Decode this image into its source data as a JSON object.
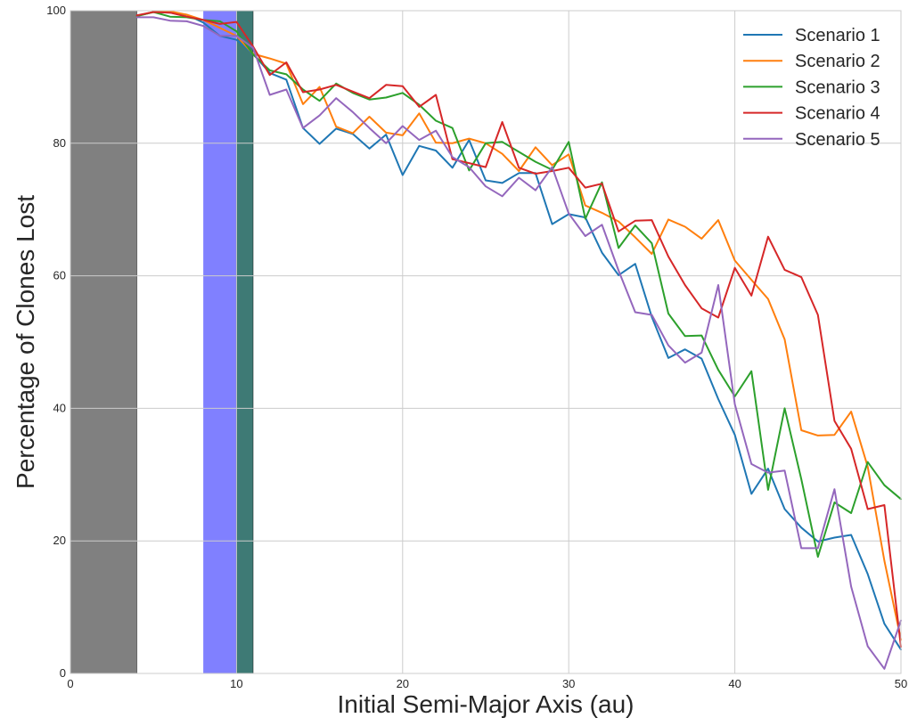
{
  "chart_data": {
    "type": "line",
    "title": "",
    "xlabel": "Initial Semi-Major Axis (au)",
    "ylabel": "Percentage of Clones Lost",
    "xlim": [
      0,
      50
    ],
    "ylim": [
      0,
      100
    ],
    "xticks": [
      0,
      10,
      20,
      30,
      40,
      50
    ],
    "yticks": [
      0,
      20,
      40,
      60,
      80,
      100
    ],
    "grid": true,
    "legend_position": "top-right",
    "bands": [
      {
        "x0": 0,
        "x1": 4,
        "color": "#808080"
      },
      {
        "x0": 8,
        "x1": 10,
        "color": "#8080ff"
      },
      {
        "x0": 10,
        "x1": 11,
        "color": "#3e7a75"
      }
    ],
    "x": [
      4,
      5,
      6,
      7,
      8,
      9,
      10,
      11,
      12,
      13,
      14,
      15,
      16,
      17,
      18,
      19,
      20,
      21,
      22,
      23,
      24,
      25,
      26,
      27,
      28,
      29,
      30,
      31,
      32,
      33,
      34,
      35,
      36,
      37,
      38,
      39,
      40,
      41,
      42,
      43,
      44,
      45,
      46,
      47,
      48,
      49,
      50
    ],
    "series": [
      {
        "name": "Scenario 1",
        "color": "#1f77b4",
        "values": [
          99.2,
          99.8,
          99.7,
          99.4,
          98.2,
          96.2,
          95.6,
          93.5,
          90.6,
          89.6,
          82.3,
          79.9,
          82.2,
          81.4,
          79.2,
          81.3,
          75.2,
          79.6,
          78.9,
          76.3,
          80.5,
          74.4,
          74.0,
          75.5,
          75.5,
          67.8,
          69.3,
          68.8,
          63.5,
          60.1,
          61.8,
          53.8,
          47.6,
          48.9,
          47.5,
          41.4,
          36.0,
          27.1,
          30.9,
          24.8,
          22.0,
          19.9,
          20.5,
          20.9,
          15.0,
          7.5,
          3.6
        ]
      },
      {
        "name": "Scenario 2",
        "color": "#ff7f0e",
        "values": [
          99.2,
          99.8,
          99.9,
          99.4,
          98.6,
          97.4,
          96.2,
          93.5,
          92.8,
          92.0,
          85.9,
          88.5,
          82.5,
          81.5,
          84.0,
          81.6,
          81.2,
          84.5,
          80.1,
          80.0,
          80.7,
          80.0,
          78.4,
          75.8,
          79.4,
          76.7,
          78.3,
          70.6,
          69.5,
          68.2,
          65.8,
          63.3,
          68.5,
          67.4,
          65.6,
          68.4,
          62.3,
          59.4,
          56.5,
          50.4,
          36.7,
          35.9,
          36.0,
          39.5,
          31.2,
          17.0,
          5.1
        ]
      },
      {
        "name": "Scenario 3",
        "color": "#2ca02c",
        "values": [
          99.2,
          99.8,
          99.1,
          99.0,
          98.6,
          98.4,
          96.9,
          93.4,
          91.0,
          90.4,
          88.1,
          86.4,
          89.0,
          87.6,
          86.6,
          86.9,
          87.6,
          85.8,
          83.4,
          82.3,
          75.9,
          80.0,
          80.2,
          78.7,
          77.2,
          76.0,
          80.2,
          68.6,
          74.1,
          64.2,
          67.6,
          64.9,
          54.3,
          50.9,
          51.0,
          45.8,
          41.8,
          45.6,
          27.7,
          40.0,
          29.3,
          17.6,
          25.8,
          24.2,
          31.9,
          28.4,
          26.3
        ]
      },
      {
        "name": "Scenario 4",
        "color": "#d62728",
        "values": [
          99.3,
          99.8,
          99.7,
          99.1,
          98.6,
          98.0,
          98.3,
          94.6,
          90.3,
          92.2,
          87.7,
          88.1,
          88.8,
          87.8,
          86.8,
          88.8,
          88.6,
          85.5,
          87.3,
          77.6,
          77.0,
          76.4,
          83.2,
          76.3,
          75.4,
          75.8,
          76.3,
          73.3,
          73.9,
          66.7,
          68.3,
          68.4,
          62.9,
          58.6,
          55.1,
          53.7,
          61.2,
          57.0,
          65.9,
          60.9,
          59.8,
          54.1,
          38.1,
          33.9,
          24.8,
          25.4,
          4.0
        ]
      },
      {
        "name": "Scenario 5",
        "color": "#9467bd",
        "values": [
          99.0,
          99.0,
          98.5,
          98.4,
          97.7,
          96.2,
          96.2,
          94.4,
          87.3,
          88.1,
          82.3,
          84.2,
          86.8,
          84.7,
          82.3,
          80.0,
          82.6,
          80.5,
          81.9,
          77.9,
          76.4,
          73.5,
          72.0,
          74.8,
          72.9,
          76.4,
          69.4,
          66.0,
          67.7,
          60.8,
          54.5,
          54.1,
          49.5,
          46.9,
          48.4,
          58.6,
          40.6,
          31.6,
          30.3,
          30.6,
          18.9,
          18.9,
          27.8,
          13.1,
          4.1,
          0.7,
          8.0
        ]
      }
    ]
  }
}
